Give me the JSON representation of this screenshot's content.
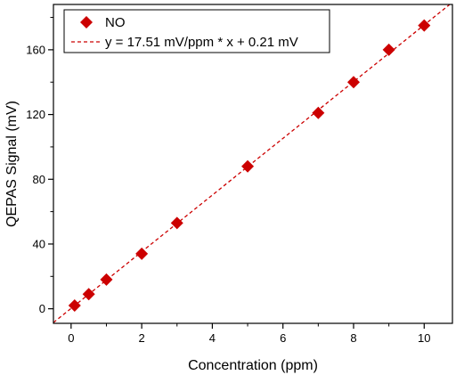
{
  "chart_data": {
    "type": "scatter",
    "xlabel": "Concentration (ppm)",
    "ylabel": "QEPAS Signal (mV)",
    "xlim": [
      -0.5,
      10.8
    ],
    "ylim": [
      -9,
      188
    ],
    "xticks": [
      0,
      2,
      4,
      6,
      8,
      10
    ],
    "yticks": [
      0,
      40,
      80,
      120,
      160
    ],
    "xtick_labels": [
      "0",
      "2",
      "4",
      "6",
      "8",
      "10"
    ],
    "ytick_labels": [
      "0",
      "40",
      "80",
      "120",
      "160"
    ],
    "grid": false,
    "legend_position": "top-left",
    "series": [
      {
        "name": "NO",
        "marker": "diamond",
        "color": "#cc0000",
        "x": [
          0.1,
          0.5,
          1,
          2,
          3,
          5,
          7,
          8,
          9,
          10
        ],
        "y": [
          2,
          9,
          18,
          34,
          53,
          88,
          121,
          140,
          160,
          175
        ]
      }
    ],
    "fit": {
      "label": "y = 17.51 mV/ppm * x + 0.21 mV",
      "slope": 17.51,
      "intercept": 0.21,
      "color": "#cc0000",
      "style": "dashed"
    }
  }
}
